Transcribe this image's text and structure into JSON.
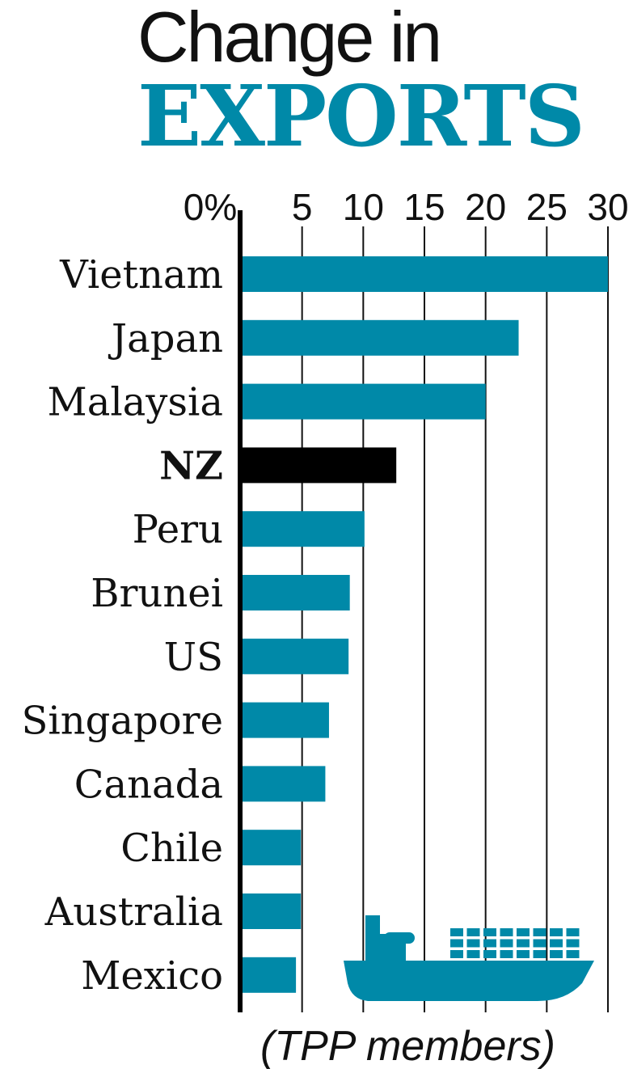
{
  "title_line1": "Change in",
  "title_line2": "EXPORTS",
  "footnote": "(TPP members)",
  "colors": {
    "bar": "#0089a8",
    "highlight": "#000000",
    "title_accent": "#0089a8",
    "axis": "#000000"
  },
  "icon": "cargo-ship-icon",
  "chart_data": {
    "type": "bar",
    "orientation": "horizontal",
    "title": "Change in EXPORTS",
    "xlabel": "",
    "ylabel": "",
    "xlim": [
      0,
      30
    ],
    "xticks": [
      0,
      5,
      10,
      15,
      20,
      25,
      30
    ],
    "xtick_labels": [
      "0%",
      "5",
      "10",
      "15",
      "20",
      "25",
      "30"
    ],
    "grid": true,
    "categories": [
      "Vietnam",
      "Japan",
      "Malaysia",
      "NZ",
      "Peru",
      "Brunei",
      "US",
      "Singapore",
      "Canada",
      "Chile",
      "Australia",
      "Mexico"
    ],
    "values": [
      30,
      22.7,
      20,
      12.7,
      10.1,
      8.9,
      8.8,
      7.2,
      6.9,
      4.9,
      4.9,
      4.5
    ],
    "highlight": "NZ"
  }
}
